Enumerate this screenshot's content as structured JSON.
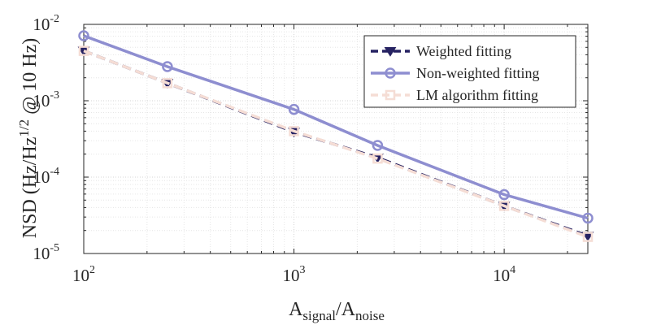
{
  "chart_data": {
    "type": "line",
    "title": "",
    "xscale": "log",
    "yscale": "log",
    "xlim": [
      100,
      25000
    ],
    "ylim": [
      1e-05,
      0.01
    ],
    "grid": true,
    "legend_position": "top-right",
    "xlabel": {
      "main": "A",
      "sub1": "signal",
      "sep": "/A",
      "sub2": "noise"
    },
    "ylabel": {
      "prefix": "NSD (Hz/Hz",
      "sup": "1/2",
      "suffix": " @ 10 Hz)"
    },
    "xticks": [
      {
        "value": 100,
        "base": "10",
        "exp": "2"
      },
      {
        "value": 1000,
        "base": "10",
        "exp": "3"
      },
      {
        "value": 10000,
        "base": "10",
        "exp": "4"
      }
    ],
    "yticks": [
      {
        "value": 0.01,
        "base": "10",
        "exp": "-2"
      },
      {
        "value": 0.001,
        "base": "10",
        "exp": "-3"
      },
      {
        "value": 0.0001,
        "base": "10",
        "exp": "-4"
      },
      {
        "value": 1e-05,
        "base": "10",
        "exp": "-5"
      }
    ],
    "x": [
      100,
      250,
      1000,
      2500,
      10000,
      25000
    ],
    "series": [
      {
        "name": "Weighted fitting",
        "color": "#262262",
        "line": "dashed",
        "marker": "triangle-down",
        "values": [
          0.0045,
          0.0017,
          0.00039,
          0.00018,
          4.2e-05,
          1.7e-05
        ]
      },
      {
        "name": "Non-weighted fitting",
        "color": "#8e8ed0",
        "line": "solid",
        "marker": "circle",
        "values": [
          0.0071,
          0.0028,
          0.00077,
          0.00026,
          5.9e-05,
          2.9e-05
        ]
      },
      {
        "name": "LM algorithm fitting",
        "color": "#f5ddd5",
        "line": "dashed",
        "marker": "square",
        "values": [
          0.0045,
          0.0017,
          0.0004,
          0.000175,
          4.2e-05,
          1.65e-05
        ]
      }
    ]
  }
}
